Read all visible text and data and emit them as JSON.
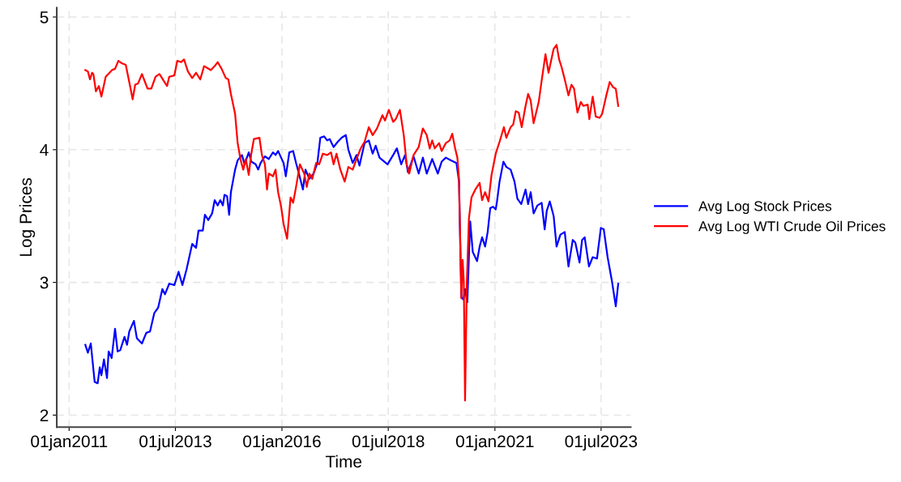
{
  "chart_data": {
    "type": "line",
    "xlabel": "Time",
    "ylabel": "Log Prices",
    "x": [
      "2011-05-20",
      "2011-06-11",
      "2011-07-06",
      "2011-08-08",
      "2011-09-03",
      "2011-09-21",
      "2011-10-05",
      "2011-10-27",
      "2011-11-22",
      "2011-12-06",
      "2012-01-01",
      "2012-01-30",
      "2012-02-21",
      "2012-03-15",
      "2012-04-20",
      "2012-05-12",
      "2012-05-31",
      "2012-07-10",
      "2012-08-04",
      "2012-09-17",
      "2012-10-24",
      "2012-11-25",
      "2013-01-01",
      "2013-02-03",
      "2013-03-11",
      "2013-04-02",
      "2013-05-09",
      "2013-06-22",
      "2013-07-28",
      "2013-08-30",
      "2013-10-05",
      "2013-11-22",
      "2013-12-25",
      "2014-01-15",
      "2014-02-21",
      "2014-03-11",
      "2014-04-09",
      "2014-05-12",
      "2014-06-03",
      "2014-06-29",
      "2014-07-21",
      "2014-08-12",
      "2014-08-26",
      "2014-09-17",
      "2014-10-05",
      "2014-10-20",
      "2014-11-25",
      "2014-12-17",
      "2015-01-23",
      "2015-02-14",
      "2015-03-22",
      "2015-04-13",
      "2015-05-20",
      "2015-06-11",
      "2015-07-02",
      "2015-08-08",
      "2015-09-10",
      "2015-10-16",
      "2015-11-07",
      "2015-11-29",
      "2015-12-25",
      "2016-01-15",
      "2016-02-03",
      "2016-03-04",
      "2016-04-06",
      "2016-05-01",
      "2016-05-23",
      "2016-06-29",
      "2016-07-21",
      "2016-08-23",
      "2016-09-28",
      "2016-10-31",
      "2016-11-25",
      "2016-12-28",
      "2017-01-23",
      "2017-02-14",
      "2017-03-19",
      "2017-04-24",
      "2017-05-27",
      "2017-07-02",
      "2017-07-24",
      "2017-08-30",
      "2017-10-02",
      "2017-10-27",
      "2017-12-10",
      "2018-01-15",
      "2018-02-17",
      "2018-03-15",
      "2018-04-17",
      "2018-06-25",
      "2018-08-12",
      "2018-09-13",
      "2018-10-20",
      "2018-11-22",
      "2018-12-17",
      "2019-02-03",
      "2019-03-19",
      "2019-04-24",
      "2019-05-27",
      "2019-07-13",
      "2019-08-30",
      "2019-10-02",
      "2019-11-07",
      "2019-12-21",
      "2020-02-06",
      "2020-02-28",
      "2020-03-19",
      "2020-04-06",
      "2020-04-20",
      "2020-05-09",
      "2020-06-03",
      "2020-06-25",
      "2020-08-01",
      "2020-08-23",
      "2020-09-13",
      "2020-10-09",
      "2020-10-31",
      "2020-11-22",
      "2020-12-17",
      "2021-01-08",
      "2021-01-19",
      "2021-02-10",
      "2021-03-15",
      "2021-04-09",
      "2021-05-16",
      "2021-06-18",
      "2021-07-13",
      "2021-08-15",
      "2021-09-21",
      "2021-10-13",
      "2021-11-04",
      "2021-11-29",
      "2022-01-01",
      "2022-02-06",
      "2022-03-04",
      "2022-03-22",
      "2022-04-17",
      "2022-05-20",
      "2022-06-14",
      "2022-07-17",
      "2022-08-23",
      "2022-09-24",
      "2022-10-31",
      "2022-11-22",
      "2022-12-28",
      "2023-01-19",
      "2023-02-10",
      "2023-03-19",
      "2023-04-20",
      "2023-05-27",
      "2023-06-29",
      "2023-07-24",
      "2023-08-26",
      "2023-10-02",
      "2023-11-04",
      "2023-11-25"
    ],
    "series": [
      {
        "name": "Avg Log Stock Prices",
        "color": "#0000ff",
        "values": [
          2.53,
          2.47,
          2.54,
          2.25,
          2.24,
          2.36,
          2.3,
          2.42,
          2.28,
          2.48,
          2.43,
          2.65,
          2.48,
          2.49,
          2.59,
          2.53,
          2.63,
          2.71,
          2.58,
          2.54,
          2.62,
          2.63,
          2.77,
          2.81,
          2.95,
          2.91,
          2.99,
          2.98,
          3.08,
          2.98,
          3.1,
          3.29,
          3.26,
          3.39,
          3.39,
          3.51,
          3.47,
          3.52,
          3.62,
          3.58,
          3.62,
          3.58,
          3.66,
          3.65,
          3.51,
          3.68,
          3.85,
          3.92,
          3.96,
          3.89,
          3.98,
          3.91,
          3.89,
          3.85,
          3.9,
          3.95,
          3.93,
          3.98,
          3.96,
          3.99,
          3.94,
          3.9,
          3.8,
          3.98,
          3.99,
          3.9,
          3.83,
          3.7,
          3.85,
          3.78,
          3.82,
          3.9,
          4.09,
          4.1,
          4.07,
          4.08,
          4.02,
          4.06,
          4.09,
          4.11,
          4.0,
          3.9,
          3.96,
          3.88,
          4.05,
          4.07,
          3.97,
          4.03,
          3.94,
          3.89,
          3.96,
          4.01,
          3.89,
          3.96,
          3.83,
          3.95,
          3.82,
          3.94,
          3.82,
          3.93,
          3.82,
          3.91,
          3.94,
          3.92,
          3.9,
          3.76,
          2.89,
          2.87,
          2.95,
          2.85,
          3.46,
          3.23,
          3.16,
          3.27,
          3.34,
          3.27,
          3.38,
          3.56,
          3.57,
          3.55,
          3.61,
          3.76,
          3.91,
          3.87,
          3.85,
          3.76,
          3.63,
          3.59,
          3.7,
          3.59,
          3.68,
          3.52,
          3.58,
          3.6,
          3.4,
          3.54,
          3.61,
          3.5,
          3.27,
          3.36,
          3.38,
          3.12,
          3.32,
          3.3,
          3.15,
          3.32,
          3.34,
          3.12,
          3.19,
          3.18,
          3.41,
          3.4,
          3.19,
          3.01,
          2.82,
          2.99
        ]
      },
      {
        "name": "Avg Log WTI Crude Oil Prices",
        "color": "#ff0000",
        "x": [
          "2011-05-20",
          "2011-06-11",
          "2011-06-29",
          "2011-07-17",
          "2011-07-28",
          "2011-08-19",
          "2011-09-13",
          "2011-10-05",
          "2011-11-11",
          "2011-12-14",
          "2012-01-04",
          "2012-01-30",
          "2012-02-28",
          "2012-03-30",
          "2012-05-01",
          "2012-06-07",
          "2012-06-29",
          "2012-07-21",
          "2012-08-15",
          "2012-09-17",
          "2012-10-13",
          "2012-11-04",
          "2012-12-06",
          "2013-01-12",
          "2013-02-14",
          "2013-03-22",
          "2013-04-20",
          "2013-05-09",
          "2013-06-22",
          "2013-07-17",
          "2013-08-19",
          "2013-09-13",
          "2013-10-16",
          "2013-11-22",
          "2013-12-25",
          "2014-01-30",
          "2014-03-04",
          "2014-05-01",
          "2014-06-03",
          "2014-06-29",
          "2014-08-01",
          "2014-09-06",
          "2014-09-28",
          "2014-10-20",
          "2014-11-25",
          "2014-12-17",
          "2015-01-12",
          "2015-02-03",
          "2015-02-25",
          "2015-03-22",
          "2015-04-13",
          "2015-05-05",
          "2015-06-22",
          "2015-07-13",
          "2015-08-08",
          "2015-08-26",
          "2015-09-10",
          "2015-10-16",
          "2015-11-07",
          "2015-11-29",
          "2015-12-25",
          "2016-01-15",
          "2016-02-14",
          "2016-03-15",
          "2016-04-06",
          "2016-05-01",
          "2016-06-03",
          "2016-07-10",
          "2016-08-01",
          "2016-08-23",
          "2016-09-17",
          "2016-10-20",
          "2016-11-15",
          "2016-12-17",
          "2017-01-23",
          "2017-02-25",
          "2017-03-19",
          "2017-04-13",
          "2017-05-16",
          "2017-06-22",
          "2017-07-24",
          "2017-08-30",
          "2017-10-02",
          "2017-11-07",
          "2017-12-10",
          "2018-01-15",
          "2018-02-17",
          "2018-03-26",
          "2018-05-12",
          "2018-06-03",
          "2018-07-06",
          "2018-08-12",
          "2018-09-03",
          "2018-10-09",
          "2018-11-11",
          "2018-12-06",
          "2018-12-28",
          "2019-02-03",
          "2019-03-19",
          "2019-04-24",
          "2019-05-27",
          "2019-06-22",
          "2019-07-13",
          "2019-08-04",
          "2019-09-10",
          "2019-10-02",
          "2019-11-07",
          "2019-12-10",
          "2020-01-01",
          "2020-01-26",
          "2020-02-14",
          "2020-02-28",
          "2020-03-19",
          "2020-03-30",
          "2020-04-09",
          "2020-04-20",
          "2020-05-05",
          "2020-05-23",
          "2020-06-14",
          "2020-07-17",
          "2020-08-23",
          "2020-09-13",
          "2020-10-09",
          "2020-11-07",
          "2020-12-03",
          "2021-01-08",
          "2021-02-10",
          "2021-03-19",
          "2021-04-09",
          "2021-05-16",
          "2021-06-07",
          "2021-06-29",
          "2021-07-24",
          "2021-08-19",
          "2021-09-21",
          "2021-10-13",
          "2021-11-04",
          "2021-11-29",
          "2022-01-12",
          "2022-02-06",
          "2022-03-11",
          "2022-04-06",
          "2022-04-28",
          "2022-05-20",
          "2022-06-14",
          "2022-07-06",
          "2022-07-28",
          "2022-08-23",
          "2022-09-24",
          "2022-10-20",
          "2022-11-11",
          "2022-12-10",
          "2023-01-08",
          "2023-01-30",
          "2023-03-08",
          "2023-03-22",
          "2023-04-20",
          "2023-05-16",
          "2023-06-18",
          "2023-07-10",
          "2023-08-15",
          "2023-09-13",
          "2023-10-13",
          "2023-11-04",
          "2023-11-25"
        ],
        "values": [
          4.6,
          4.59,
          4.53,
          4.58,
          4.57,
          4.44,
          4.48,
          4.4,
          4.55,
          4.58,
          4.6,
          4.61,
          4.67,
          4.65,
          4.64,
          4.48,
          4.38,
          4.49,
          4.5,
          4.57,
          4.51,
          4.46,
          4.46,
          4.55,
          4.57,
          4.52,
          4.48,
          4.55,
          4.56,
          4.67,
          4.66,
          4.68,
          4.59,
          4.54,
          4.58,
          4.53,
          4.63,
          4.6,
          4.63,
          4.66,
          4.61,
          4.54,
          4.53,
          4.42,
          4.27,
          4.05,
          3.92,
          3.85,
          3.93,
          3.81,
          3.97,
          4.08,
          4.09,
          3.96,
          3.89,
          3.7,
          3.82,
          3.8,
          3.85,
          3.68,
          3.57,
          3.44,
          3.33,
          3.64,
          3.6,
          3.72,
          3.89,
          3.82,
          3.72,
          3.82,
          3.78,
          3.9,
          3.89,
          3.97,
          3.96,
          3.98,
          3.89,
          3.97,
          3.85,
          3.76,
          3.87,
          3.85,
          3.93,
          4.01,
          4.06,
          4.17,
          4.11,
          4.16,
          4.26,
          4.22,
          4.3,
          4.21,
          4.23,
          4.3,
          4.11,
          3.89,
          3.82,
          3.96,
          4.02,
          4.16,
          4.11,
          4.01,
          4.07,
          4.01,
          4.05,
          3.99,
          4.05,
          4.07,
          4.12,
          4.01,
          3.94,
          3.78,
          2.88,
          3.17,
          3.01,
          2.11,
          2.99,
          3.48,
          3.64,
          3.7,
          3.75,
          3.62,
          3.68,
          3.61,
          3.81,
          3.97,
          4.06,
          4.17,
          4.09,
          4.17,
          4.19,
          4.29,
          4.28,
          4.17,
          4.33,
          4.42,
          4.37,
          4.2,
          4.36,
          4.52,
          4.72,
          4.58,
          4.67,
          4.76,
          4.79,
          4.68,
          4.62,
          4.53,
          4.41,
          4.49,
          4.46,
          4.28,
          4.36,
          4.33,
          4.34,
          4.23,
          4.4,
          4.25,
          4.24,
          4.27,
          4.41,
          4.51,
          4.47,
          4.46,
          4.33
        ]
      }
    ],
    "xlim": [
      "2010-09-17",
      "2024-03-11"
    ],
    "ylim": [
      1.91,
      5.07
    ],
    "xticks": [
      {
        "value": "2011-01-01",
        "label": "01jan2011"
      },
      {
        "value": "2013-07-01",
        "label": "01jul2013"
      },
      {
        "value": "2016-01-01",
        "label": "01jan2016"
      },
      {
        "value": "2018-07-01",
        "label": "01jul2018"
      },
      {
        "value": "2021-01-01",
        "label": "01jan2021"
      },
      {
        "value": "2023-07-01",
        "label": "01jul2023"
      }
    ],
    "yticks": [
      2,
      3,
      4,
      5
    ],
    "grid": true,
    "legend": "right",
    "line_style": "solid",
    "marker": "none"
  }
}
